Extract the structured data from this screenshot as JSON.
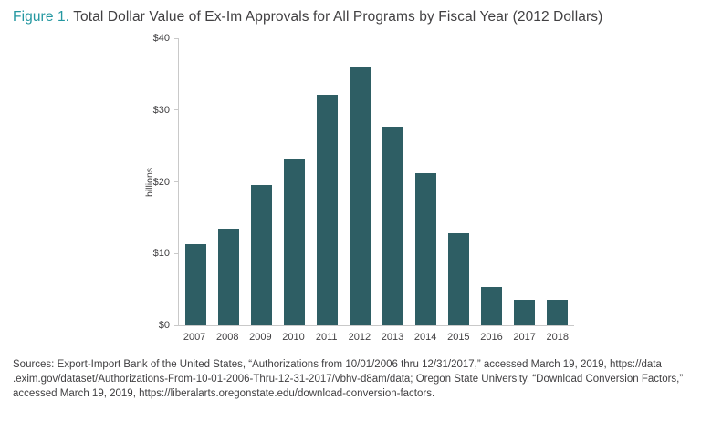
{
  "title": {
    "prefix": "Figure 1.",
    "text": " Total Dollar Value of Ex-Im Approvals for All Programs by Fiscal Year (2012 Dollars)"
  },
  "colors": {
    "accent": "#2397a0",
    "bar": "#2e5e64",
    "text": "#414042",
    "axis": "#c9c9c9"
  },
  "chart_data": {
    "type": "bar",
    "categories": [
      "2007",
      "2008",
      "2009",
      "2010",
      "2011",
      "2012",
      "2013",
      "2014",
      "2015",
      "2016",
      "2017",
      "2018"
    ],
    "values": [
      11.3,
      13.5,
      19.6,
      23.1,
      32.1,
      36.0,
      27.7,
      21.2,
      12.8,
      5.3,
      3.5,
      3.5
    ],
    "title": "Total Dollar Value of Ex-Im Approvals for All Programs by Fiscal Year (2012 Dollars)",
    "xlabel": "",
    "ylabel": "billions",
    "ylim": [
      0,
      40
    ],
    "ytick_labels": [
      "$40",
      "$30",
      "$20",
      "$10",
      "$0"
    ],
    "grid": false,
    "legend": "none",
    "bar_color": "#2e5e64"
  },
  "source_lines": {
    "line1": "Sources: Export-Import Bank of the United States, “Authorizations from 10/01/2006 thru 12/31/2017,” accessed March 19, 2019, https://data",
    "line2": ".exim.gov/dataset/Authorizations-From-10-01-2006-Thru-12-31-2017/vbhv-d8am/data; Oregon State University, “Download Conversion Factors,”",
    "line3": "accessed March 19, 2019, https://liberalarts.oregonstate.edu/download-conversion-factors."
  }
}
